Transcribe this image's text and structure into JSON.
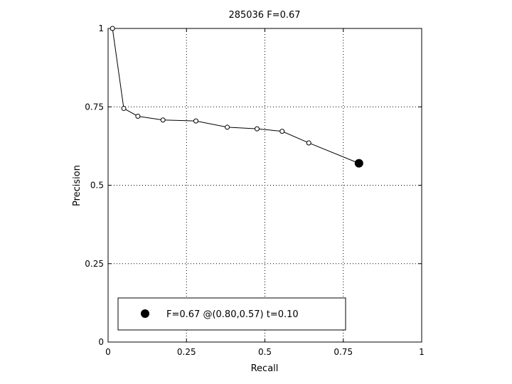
{
  "chart_data": {
    "type": "line",
    "title": "285036 F=0.67",
    "xlabel": "Recall",
    "ylabel": "Precision",
    "xlim": [
      0,
      1
    ],
    "ylim": [
      0,
      1
    ],
    "grid": true,
    "x_ticks": [
      0,
      0.25,
      0.5,
      0.75,
      1
    ],
    "y_ticks": [
      0,
      0.25,
      0.5,
      0.75,
      1
    ],
    "x_tick_labels": [
      "0",
      "0.25",
      "0.5",
      "0.75",
      "1"
    ],
    "y_tick_labels": [
      "0",
      "0.25",
      "0.5",
      "0.75",
      "1"
    ],
    "series": [
      {
        "x": [
          0.014,
          0.05,
          0.095,
          0.175,
          0.28,
          0.38,
          0.475,
          0.555,
          0.64,
          0.8
        ],
        "y": [
          1.0,
          0.745,
          0.72,
          0.708,
          0.705,
          0.685,
          0.68,
          0.672,
          0.635,
          0.57
        ],
        "color": "#000000",
        "marker": "open-circle"
      }
    ],
    "highlight_point": {
      "x": 0.8,
      "y": 0.57,
      "marker": "filled-circle",
      "color": "#000000"
    },
    "legend": {
      "position": "bottom-left",
      "entries": [
        "F=0.67 @(0.80,0.57) t=0.10"
      ]
    }
  }
}
